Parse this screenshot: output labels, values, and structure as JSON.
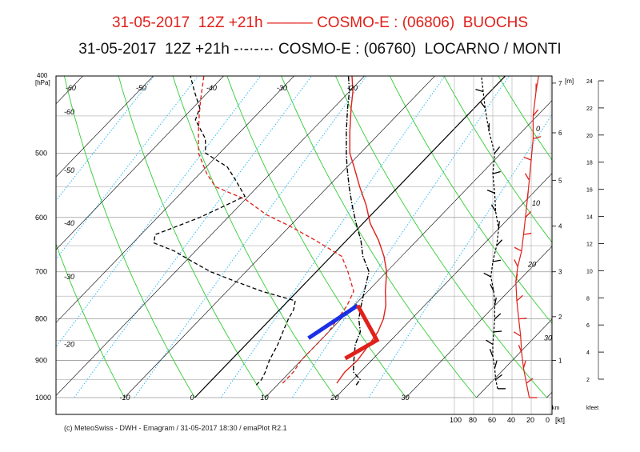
{
  "titles": {
    "line1": "31-05-2017  12Z +21h ——— COSMO-E : (06806)  BUOCHS",
    "line2": "31-05-2017  12Z +21h -·-·-·-· COSMO-E : (06760)  LOCARNO / MONTI"
  },
  "footer": "(c) MeteoSwiss - DWH - Emagram / 31-05-2017  18:30 / emaPlot R2.1",
  "colors": {
    "station1": "#e0201a",
    "station2": "#000000",
    "dry_adiabat": "#33cc33",
    "mixing_ratio": "#33bbee",
    "isotherm": "#000000",
    "gust_blue": "#1a2fe6",
    "gust_red": "#e0201a"
  },
  "chart_data": {
    "type": "line",
    "chart_kind": "emagram (skew-T log-p)",
    "y_axis": {
      "label": "[hPa]",
      "scale": "log",
      "range": [
        1000,
        400
      ],
      "ticks": [
        400,
        500,
        600,
        700,
        800,
        900,
        1000
      ]
    },
    "temperature_labels": {
      "left_column": [
        "-60",
        "-50",
        "-40",
        "-30",
        "-20"
      ],
      "skewed_top": [
        "-60",
        "-50",
        "-40",
        "-30",
        "-20"
      ],
      "bottom": [
        "-10",
        "0",
        "10",
        "20",
        "30"
      ]
    },
    "temp_label_values": {
      "left_column": [
        -60,
        -50,
        -40,
        -30,
        -20
      ],
      "skewed_top": [
        -60,
        -50,
        -40,
        -30,
        -20
      ],
      "bottom": [
        -10,
        0,
        10,
        20,
        30
      ]
    },
    "theta_labels": [
      "0",
      "10",
      "20",
      "30"
    ],
    "theta_label_values": [
      0,
      10,
      20,
      30
    ],
    "wind_axis": {
      "label": "[kt]",
      "ticks": [
        "100",
        "80",
        "60",
        "40",
        "20",
        "0"
      ],
      "tick_values": [
        100,
        80,
        60,
        40,
        20,
        0
      ]
    },
    "height_axis_m": {
      "label": "[m]",
      "ticks": [
        "1",
        "2",
        "3",
        "4",
        "5",
        "6",
        "7"
      ],
      "unit_label": "km",
      "values_km": [
        1,
        2,
        3,
        4,
        5,
        6,
        7
      ]
    },
    "height_axis_kfeet": {
      "label": "kfeet",
      "ticks": [
        "2",
        "4",
        "6",
        "8",
        "10",
        "12",
        "14",
        "16",
        "18",
        "20",
        "22",
        "24"
      ],
      "values": [
        2,
        4,
        6,
        8,
        10,
        12,
        14,
        16,
        18,
        20,
        22,
        24
      ]
    },
    "series": [
      {
        "name": "BUOCHS",
        "variable": "temperature",
        "style": "solid",
        "color": "#e0201a",
        "points": [
          [
            960,
            18.2
          ],
          [
            930,
            17.8
          ],
          [
            900,
            18.0
          ],
          [
            860,
            17.5
          ],
          [
            830,
            17.0
          ],
          [
            800,
            16.0
          ],
          [
            770,
            14.5
          ],
          [
            740,
            12.5
          ],
          [
            700,
            10.0
          ],
          [
            670,
            7.5
          ],
          [
            640,
            4.5
          ],
          [
            610,
            1.0
          ],
          [
            580,
            -2.0
          ],
          [
            550,
            -5.5
          ],
          [
            520,
            -9.0
          ],
          [
            500,
            -11.5
          ],
          [
            470,
            -14.5
          ],
          [
            440,
            -17.5
          ],
          [
            420,
            -19.5
          ],
          [
            400,
            -22.0
          ]
        ]
      },
      {
        "name": "BUOCHS",
        "variable": "dewpoint",
        "style": "dashed",
        "color": "#e0201a",
        "points": [
          [
            960,
            10.5
          ],
          [
            930,
            10.5
          ],
          [
            900,
            10.0
          ],
          [
            870,
            10.0
          ],
          [
            830,
            10.0
          ],
          [
            800,
            9.5
          ],
          [
            770,
            9.0
          ],
          [
            740,
            8.0
          ],
          [
            700,
            4.5
          ],
          [
            670,
            1.5
          ],
          [
            640,
            -4.5
          ],
          [
            615,
            -10.0
          ],
          [
            595,
            -15.0
          ],
          [
            570,
            -20.0
          ],
          [
            550,
            -26.0
          ],
          [
            530,
            -29.0
          ],
          [
            500,
            -33.0
          ],
          [
            470,
            -36.0
          ],
          [
            450,
            -38.0
          ],
          [
            430,
            -40.0
          ],
          [
            400,
            -43.0
          ]
        ]
      },
      {
        "name": "LOCARNO / MONTI",
        "variable": "temperature",
        "style": "dash-dot",
        "color": "#000000",
        "points": [
          [
            965,
            21.2
          ],
          [
            950,
            21.0
          ],
          [
            930,
            19.0
          ],
          [
            900,
            17.5
          ],
          [
            860,
            15.5
          ],
          [
            830,
            14.5
          ],
          [
            800,
            12.5
          ],
          [
            770,
            11.0
          ],
          [
            740,
            9.5
          ],
          [
            700,
            7.5
          ],
          [
            670,
            4.5
          ],
          [
            640,
            2.0
          ],
          [
            610,
            -1.0
          ],
          [
            580,
            -4.0
          ],
          [
            550,
            -7.0
          ],
          [
            520,
            -10.0
          ],
          [
            500,
            -12.0
          ],
          [
            470,
            -15.0
          ],
          [
            440,
            -18.0
          ],
          [
            420,
            -20.0
          ],
          [
            400,
            -22.5
          ]
        ]
      },
      {
        "name": "LOCARNO / MONTI",
        "variable": "dewpoint",
        "style": "dashed",
        "color": "#000000",
        "points": [
          [
            965,
            7.0
          ],
          [
            950,
            7.0
          ],
          [
            930,
            6.5
          ],
          [
            900,
            5.5
          ],
          [
            860,
            4.5
          ],
          [
            830,
            3.5
          ],
          [
            800,
            2.5
          ],
          [
            780,
            2.0
          ],
          [
            760,
            1.0
          ],
          [
            740,
            -5.0
          ],
          [
            720,
            -10.0
          ],
          [
            700,
            -15.0
          ],
          [
            680,
            -19.0
          ],
          [
            660,
            -23.0
          ],
          [
            645,
            -27.0
          ],
          [
            630,
            -28.0
          ],
          [
            615,
            -26.0
          ],
          [
            600,
            -24.0
          ],
          [
            580,
            -22.0
          ],
          [
            565,
            -20.5
          ],
          [
            540,
            -24.0
          ],
          [
            520,
            -27.0
          ],
          [
            500,
            -32.0
          ],
          [
            480,
            -34.0
          ],
          [
            455,
            -38.0
          ],
          [
            440,
            -39.0
          ],
          [
            420,
            -42.0
          ],
          [
            400,
            -45.0
          ]
        ]
      }
    ],
    "gust_markers": [
      {
        "color": "blue",
        "points": [
          [
            845,
            8.0
          ],
          [
            770,
            10.5
          ]
        ]
      },
      {
        "color": "red",
        "points": [
          [
            770,
            10.5
          ],
          [
            850,
            18.0
          ],
          [
            895,
            16.0
          ]
        ]
      }
    ],
    "wind_profiles": [
      {
        "name": "BUOCHS",
        "color": "#e0201a",
        "speed_kt": [
          [
            1000,
            22
          ],
          [
            960,
            25
          ],
          [
            920,
            28
          ],
          [
            880,
            30
          ],
          [
            840,
            31
          ],
          [
            800,
            33
          ],
          [
            760,
            35
          ],
          [
            720,
            36
          ],
          [
            690,
            34
          ],
          [
            660,
            30
          ],
          [
            630,
            28
          ],
          [
            600,
            26
          ],
          [
            570,
            24
          ],
          [
            540,
            22
          ],
          [
            510,
            20
          ],
          [
            480,
            18
          ],
          [
            450,
            18
          ],
          [
            420,
            15
          ],
          [
            400,
            12
          ]
        ]
      },
      {
        "name": "LOCARNO / MONTI",
        "color": "#000000",
        "speed_kt": [
          [
            975,
            55
          ],
          [
            950,
            57
          ],
          [
            920,
            58
          ],
          [
            890,
            60
          ],
          [
            860,
            60
          ],
          [
            830,
            59
          ],
          [
            800,
            58
          ],
          [
            770,
            58
          ],
          [
            740,
            59
          ],
          [
            710,
            62
          ],
          [
            680,
            60
          ],
          [
            650,
            56
          ],
          [
            620,
            54
          ],
          [
            590,
            57
          ],
          [
            560,
            58
          ],
          [
            530,
            60
          ],
          [
            500,
            58
          ],
          [
            470,
            64
          ],
          [
            440,
            68
          ],
          [
            420,
            70
          ],
          [
            400,
            72
          ]
        ]
      }
    ]
  }
}
